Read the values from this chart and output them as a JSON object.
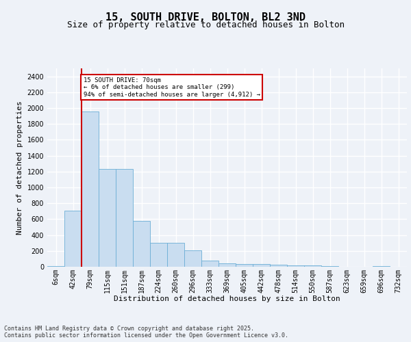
{
  "title_line1": "15, SOUTH DRIVE, BOLTON, BL2 3ND",
  "title_line2": "Size of property relative to detached houses in Bolton",
  "xlabel": "Distribution of detached houses by size in Bolton",
  "ylabel": "Number of detached properties",
  "categories": [
    "6sqm",
    "42sqm",
    "79sqm",
    "115sqm",
    "151sqm",
    "187sqm",
    "224sqm",
    "260sqm",
    "296sqm",
    "333sqm",
    "369sqm",
    "405sqm",
    "442sqm",
    "478sqm",
    "514sqm",
    "550sqm",
    "587sqm",
    "623sqm",
    "659sqm",
    "696sqm",
    "732sqm"
  ],
  "values": [
    10,
    710,
    1960,
    1235,
    1235,
    575,
    305,
    305,
    205,
    80,
    45,
    35,
    35,
    30,
    18,
    18,
    10,
    4,
    4,
    10,
    1
  ],
  "bar_color": "#c9ddf0",
  "bar_edgecolor": "#6baed6",
  "redline_x": 1.5,
  "annotation_text": "15 SOUTH DRIVE: 70sqm\n← 6% of detached houses are smaller (299)\n94% of semi-detached houses are larger (4,912) →",
  "annotation_box_edgecolor": "#cc0000",
  "annotation_box_facecolor": "#ffffff",
  "footnote": "Contains HM Land Registry data © Crown copyright and database right 2025.\nContains public sector information licensed under the Open Government Licence v3.0.",
  "ylim": [
    0,
    2500
  ],
  "yticks": [
    0,
    200,
    400,
    600,
    800,
    1000,
    1200,
    1400,
    1600,
    1800,
    2000,
    2200,
    2400
  ],
  "background_color": "#eef2f8",
  "grid_color": "#ffffff",
  "title_fontsize": 11,
  "subtitle_fontsize": 9,
  "axis_label_fontsize": 8,
  "tick_fontsize": 7,
  "footnote_fontsize": 6
}
